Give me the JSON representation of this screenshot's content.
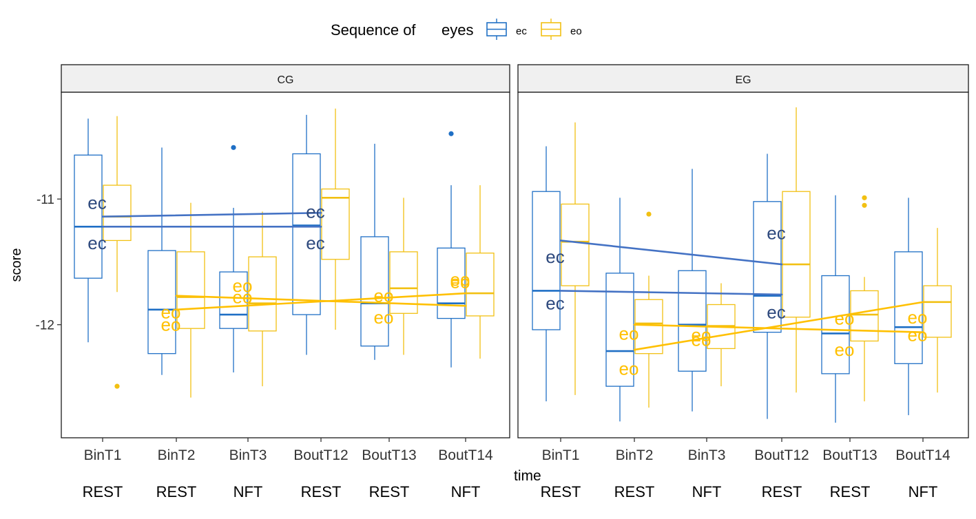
{
  "chart_data": {
    "type": "boxplot",
    "legend": {
      "title_prefix": "Sequence of",
      "title": "eyes",
      "placement": "top",
      "entries": [
        {
          "key": "ec",
          "label": "ec",
          "color": "#1f6fc5"
        },
        {
          "key": "eo",
          "label": "eo",
          "color": "#f2c012"
        }
      ]
    },
    "colors": {
      "ec_box": "#1f6fc5",
      "eo_box": "#f2c012",
      "ec_trend": "#4472c4",
      "ec_label": "#2f4a7e",
      "eo_trend": "#ffc000",
      "eo_label": "#ffc000",
      "strip_fill": "#f0f0f0"
    },
    "xlabel": "time",
    "ylabel": "score",
    "ylim": [
      -12.9,
      -10.15
    ],
    "yticks": [
      -11,
      -12
    ],
    "ytick_labels": [
      "-11",
      "-12"
    ],
    "categories": [
      "BinT1",
      "BinT2",
      "BinT3",
      "BoutT12",
      "BoutT13",
      "BoutT14"
    ],
    "condition_labels": [
      "REST",
      "REST",
      "NFT",
      "REST",
      "REST",
      "NFT"
    ],
    "grid": false,
    "panels": [
      {
        "name": "CG",
        "boxes": {
          "ec": [
            {
              "min": -12.14,
              "q1": -11.63,
              "median": -11.22,
              "q3": -10.65,
              "max": -10.36,
              "outliers": []
            },
            {
              "min": -12.4,
              "q1": -12.23,
              "median": -11.88,
              "q3": -11.41,
              "max": -10.59,
              "outliers": []
            },
            {
              "min": -12.38,
              "q1": -12.03,
              "median": -11.92,
              "q3": -11.58,
              "max": -11.07,
              "outliers": [
                -10.59
              ]
            },
            {
              "min": -12.24,
              "q1": -11.92,
              "median": -11.21,
              "q3": -10.64,
              "max": -10.33,
              "outliers": []
            },
            {
              "min": -12.28,
              "q1": -12.17,
              "median": -11.83,
              "q3": -11.3,
              "max": -10.56,
              "outliers": []
            },
            {
              "min": -12.34,
              "q1": -11.95,
              "median": -11.83,
              "q3": -11.39,
              "max": -10.89,
              "outliers": [
                -10.48
              ]
            }
          ],
          "eo": [
            {
              "min": -11.74,
              "q1": -11.33,
              "median": -11.14,
              "q3": -10.89,
              "max": -10.34,
              "outliers": [
                -12.49
              ]
            },
            {
              "min": -12.58,
              "q1": -12.03,
              "median": -11.78,
              "q3": -11.42,
              "max": -11.03,
              "outliers": []
            },
            {
              "min": -12.49,
              "q1": -12.05,
              "median": -11.83,
              "q3": -11.46,
              "max": -11.1,
              "outliers": []
            },
            {
              "min": -12.04,
              "q1": -11.48,
              "median": -10.99,
              "q3": -10.92,
              "max": -10.28,
              "outliers": []
            },
            {
              "min": -12.24,
              "q1": -11.91,
              "median": -11.71,
              "q3": -11.42,
              "max": -10.99,
              "outliers": []
            },
            {
              "min": -12.27,
              "q1": -11.93,
              "median": -11.75,
              "q3": -11.43,
              "max": -10.89,
              "outliers": []
            }
          ]
        },
        "trends": {
          "ec": [
            {
              "x": [
                "BinT1",
                "BoutT12"
              ],
              "y": [
                -11.14,
                -11.11
              ]
            },
            {
              "x": [
                "BinT1",
                "BoutT12"
              ],
              "y": [
                -11.22,
                -11.22
              ]
            }
          ],
          "eo": [
            {
              "x": [
                "BinT2",
                "BoutT14"
              ],
              "y": [
                -11.88,
                -11.75
              ]
            },
            {
              "x": [
                "BinT2",
                "BoutT14"
              ],
              "y": [
                -11.77,
                -11.85
              ]
            }
          ]
        },
        "point_labels": {
          "ec": [
            {
              "x": "BinT1",
              "y": -11.35,
              "text": "ec"
            },
            {
              "x": "BinT1",
              "y": -11.03,
              "text": "ec"
            },
            {
              "x": "BoutT12",
              "y": -11.35,
              "text": "ec"
            },
            {
              "x": "BoutT12",
              "y": -11.1,
              "text": "ec"
            }
          ],
          "eo": [
            {
              "x": "BinT2",
              "y": -12.0,
              "text": "eo"
            },
            {
              "x": "BinT2",
              "y": -11.9,
              "text": "eo"
            },
            {
              "x": "BinT3",
              "y": -11.78,
              "text": "eo"
            },
            {
              "x": "BinT3",
              "y": -11.69,
              "text": "eo"
            },
            {
              "x": "BoutT13",
              "y": -11.94,
              "text": "eo"
            },
            {
              "x": "BoutT13",
              "y": -11.77,
              "text": "eo"
            },
            {
              "x": "BoutT14",
              "y": -11.66,
              "text": "eo"
            },
            {
              "x": "BoutT14",
              "y": -11.64,
              "text": "eo"
            }
          ]
        }
      },
      {
        "name": "EG",
        "boxes": {
          "ec": [
            {
              "min": -12.61,
              "q1": -12.04,
              "median": -11.73,
              "q3": -10.94,
              "max": -10.58,
              "outliers": []
            },
            {
              "min": -12.77,
              "q1": -12.49,
              "median": -12.21,
              "q3": -11.59,
              "max": -10.99,
              "outliers": []
            },
            {
              "min": -12.69,
              "q1": -12.37,
              "median": -12.0,
              "q3": -11.57,
              "max": -10.76,
              "outliers": []
            },
            {
              "min": -12.75,
              "q1": -12.06,
              "median": -11.77,
              "q3": -11.02,
              "max": -10.64,
              "outliers": []
            },
            {
              "min": -12.78,
              "q1": -12.39,
              "median": -12.07,
              "q3": -11.61,
              "max": -10.97,
              "outliers": []
            },
            {
              "min": -12.72,
              "q1": -12.31,
              "median": -12.02,
              "q3": -11.42,
              "max": -10.99,
              "outliers": []
            }
          ],
          "eo": [
            {
              "min": -12.56,
              "q1": -11.69,
              "median": -11.34,
              "q3": -11.04,
              "max": -10.39,
              "outliers": []
            },
            {
              "min": -12.66,
              "q1": -12.23,
              "median": -11.99,
              "q3": -11.8,
              "max": -11.61,
              "outliers": [
                -11.12
              ]
            },
            {
              "min": -12.49,
              "q1": -12.19,
              "median": -12.01,
              "q3": -11.84,
              "max": -11.67,
              "outliers": []
            },
            {
              "min": -12.54,
              "q1": -11.94,
              "median": -11.52,
              "q3": -10.94,
              "max": -10.27,
              "outliers": []
            },
            {
              "min": -12.61,
              "q1": -12.13,
              "median": -11.92,
              "q3": -11.73,
              "max": -11.62,
              "outliers": [
                -10.99,
                -11.05
              ]
            },
            {
              "min": -12.54,
              "q1": -12.1,
              "median": -11.82,
              "q3": -11.69,
              "max": -11.23,
              "outliers": []
            }
          ]
        },
        "trends": {
          "ec": [
            {
              "x": [
                "BinT1",
                "BoutT12"
              ],
              "y": [
                -11.33,
                -11.52
              ]
            },
            {
              "x": [
                "BinT1",
                "BoutT12"
              ],
              "y": [
                -11.73,
                -11.76
              ]
            }
          ],
          "eo": [
            {
              "x": [
                "BinT2",
                "BoutT14"
              ],
              "y": [
                -12.2,
                -11.82
              ]
            },
            {
              "x": [
                "BinT2",
                "BoutT14"
              ],
              "y": [
                -12.0,
                -12.06
              ]
            }
          ]
        },
        "point_labels": {
          "ec": [
            {
              "x": "BinT1",
              "y": -11.83,
              "text": "ec"
            },
            {
              "x": "BinT1",
              "y": -11.46,
              "text": "ec"
            },
            {
              "x": "BoutT12",
              "y": -11.9,
              "text": "ec"
            },
            {
              "x": "BoutT12",
              "y": -11.27,
              "text": "ec"
            }
          ],
          "eo": [
            {
              "x": "BinT2",
              "y": -12.35,
              "text": "eo"
            },
            {
              "x": "BinT2",
              "y": -12.07,
              "text": "eo"
            },
            {
              "x": "BinT3",
              "y": -12.12,
              "text": "eo"
            },
            {
              "x": "BinT3",
              "y": -12.08,
              "text": "eo"
            },
            {
              "x": "BoutT13",
              "y": -12.2,
              "text": "eo"
            },
            {
              "x": "BoutT13",
              "y": -11.95,
              "text": "eo"
            },
            {
              "x": "BoutT14",
              "y": -12.08,
              "text": "eo"
            },
            {
              "x": "BoutT14",
              "y": -11.94,
              "text": "eo"
            }
          ]
        }
      }
    ]
  }
}
